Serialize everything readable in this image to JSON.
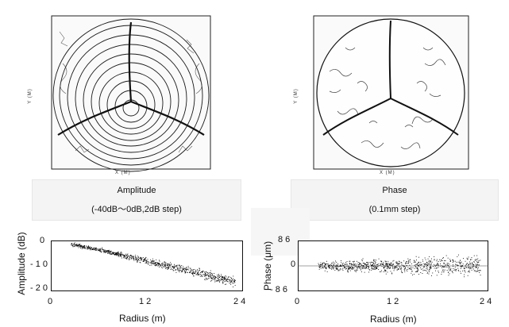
{
  "maps": {
    "amplitude": {
      "xlabel": "X (M)",
      "ylabel": "Y (M)",
      "caption_line1": "Amplitude",
      "caption_line2": "(-40dB～0dB,2dB step)"
    },
    "phase": {
      "xlabel": "X (M)",
      "ylabel": "Y (M)",
      "caption_line1": "Phase",
      "caption_line2": "(0.1mm step)"
    }
  },
  "chart_data": [
    {
      "type": "scatter",
      "title": "",
      "xlabel": "Radius (m)",
      "ylabel": "Amplitude (dB)",
      "xlim": [
        0,
        24
      ],
      "ylim": [
        -20,
        0
      ],
      "xticks": [
        "0",
        "1 2",
        "2 4"
      ],
      "yticks": [
        "0",
        "- 1 0",
        "- 2 0"
      ],
      "grid": false,
      "trend": {
        "x": [
          2.5,
          6,
          10,
          14,
          18,
          22,
          23
        ],
        "y_center": [
          -1.5,
          -3.5,
          -6.5,
          -9.5,
          -12.5,
          -15.5,
          -16.5
        ],
        "spread": [
          1.0,
          1.2,
          1.5,
          2.0,
          2.5,
          3.0,
          3.0
        ]
      },
      "color": "#000000"
    },
    {
      "type": "scatter",
      "title": "",
      "xlabel": "Radius (m)",
      "ylabel": "Phase (μm)",
      "xlim": [
        0,
        24
      ],
      "ylim": [
        -86,
        86
      ],
      "xticks": [
        "0",
        "1 2",
        "2 4"
      ],
      "yticks": [
        "8 6",
        "0",
        "- 8 6"
      ],
      "grid": false,
      "trend": {
        "x": [
          2.5,
          6,
          10,
          14,
          18,
          22,
          23
        ],
        "y_center": [
          0,
          0,
          0,
          0,
          0,
          0,
          0
        ],
        "spread": [
          20,
          25,
          30,
          35,
          40,
          45,
          50
        ]
      },
      "color": "#000000"
    }
  ]
}
